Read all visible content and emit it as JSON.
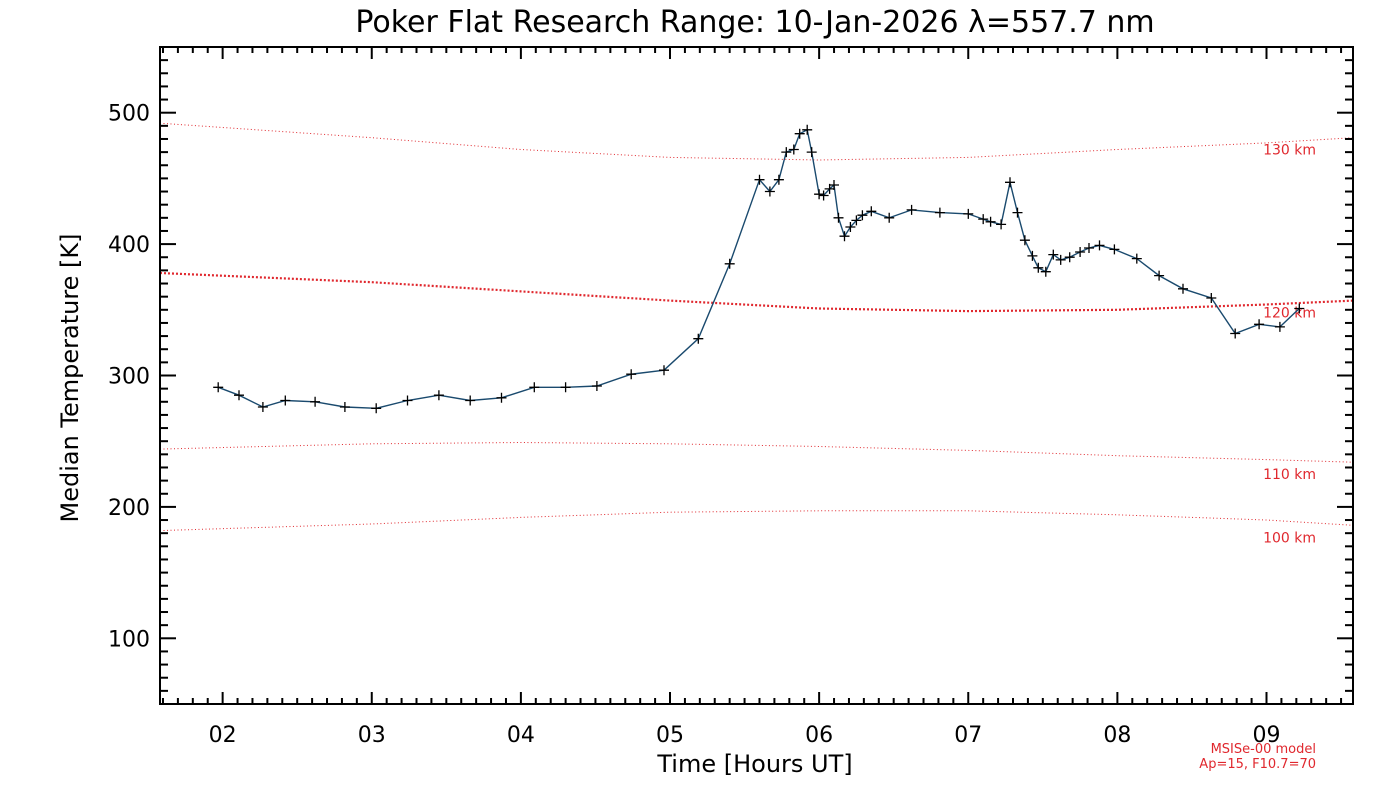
{
  "chart_data": {
    "type": "line",
    "title": "Poker Flat Research Range: 10-Jan-2026 λ=557.7 nm",
    "xlabel": "Time [Hours UT]",
    "ylabel": "Median Temperature [K]",
    "xlim": [
      1.58,
      9.58
    ],
    "ylim": [
      50,
      550
    ],
    "x_ticks": [
      {
        "value": 2,
        "label": "02"
      },
      {
        "value": 3,
        "label": "03"
      },
      {
        "value": 4,
        "label": "04"
      },
      {
        "value": 5,
        "label": "05"
      },
      {
        "value": 6,
        "label": "06"
      },
      {
        "value": 7,
        "label": "07"
      },
      {
        "value": 8,
        "label": "08"
      },
      {
        "value": 9,
        "label": "09"
      }
    ],
    "y_ticks": [
      {
        "value": 100,
        "label": "100"
      },
      {
        "value": 200,
        "label": "200"
      },
      {
        "value": 300,
        "label": "300"
      },
      {
        "value": 400,
        "label": "400"
      },
      {
        "value": 500,
        "label": "500"
      }
    ],
    "series": [
      {
        "name": "Median Temperature",
        "color": "#1a4a6e",
        "marker_color": "#000000",
        "points": [
          [
            1.97,
            291
          ],
          [
            2.11,
            285
          ],
          [
            2.27,
            276
          ],
          [
            2.42,
            281
          ],
          [
            2.62,
            280
          ],
          [
            2.82,
            276
          ],
          [
            3.03,
            275
          ],
          [
            3.24,
            281
          ],
          [
            3.45,
            285
          ],
          [
            3.66,
            281
          ],
          [
            3.87,
            283
          ],
          [
            4.09,
            291
          ],
          [
            4.3,
            291
          ],
          [
            4.51,
            292
          ],
          [
            4.74,
            301
          ],
          [
            4.96,
            304
          ],
          [
            5.19,
            328
          ],
          [
            5.4,
            385
          ],
          [
            5.6,
            449
          ],
          [
            5.67,
            440
          ],
          [
            5.73,
            449
          ],
          [
            5.78,
            470
          ],
          [
            5.83,
            472
          ],
          [
            5.87,
            484
          ],
          [
            5.92,
            487
          ],
          [
            5.95,
            470
          ],
          [
            6.0,
            438
          ],
          [
            6.03,
            437
          ],
          [
            6.07,
            442
          ],
          [
            6.1,
            445
          ],
          [
            6.13,
            420
          ],
          [
            6.17,
            406
          ],
          [
            6.21,
            413
          ],
          [
            6.25,
            418
          ],
          [
            6.29,
            422
          ],
          [
            6.35,
            425
          ],
          [
            6.47,
            420
          ],
          [
            6.62,
            426
          ],
          [
            6.81,
            424
          ],
          [
            7.0,
            423
          ],
          [
            7.1,
            419
          ],
          [
            7.15,
            417
          ],
          [
            7.22,
            415
          ],
          [
            7.28,
            447
          ],
          [
            7.33,
            424
          ],
          [
            7.38,
            403
          ],
          [
            7.43,
            391
          ],
          [
            7.47,
            382
          ],
          [
            7.52,
            379
          ],
          [
            7.57,
            392
          ],
          [
            7.62,
            388
          ],
          [
            7.68,
            390
          ],
          [
            7.75,
            394
          ],
          [
            7.81,
            397
          ],
          [
            7.88,
            399
          ],
          [
            7.98,
            396
          ],
          [
            8.13,
            389
          ],
          [
            8.28,
            376
          ],
          [
            8.44,
            366
          ],
          [
            8.63,
            359
          ],
          [
            8.79,
            332
          ],
          [
            8.95,
            339
          ],
          [
            9.09,
            337
          ],
          [
            9.22,
            351
          ]
        ]
      }
    ],
    "model_curves": [
      {
        "label": "130 km",
        "style": "dotted-thin",
        "points": [
          [
            1.58,
            492
          ],
          [
            3.0,
            481
          ],
          [
            4.0,
            472
          ],
          [
            5.0,
            466
          ],
          [
            6.0,
            464
          ],
          [
            7.0,
            466
          ],
          [
            8.0,
            472
          ],
          [
            9.0,
            477
          ],
          [
            9.58,
            481
          ]
        ]
      },
      {
        "label": "120 km",
        "style": "dotted-thick",
        "points": [
          [
            1.58,
            378
          ],
          [
            3.0,
            371
          ],
          [
            4.0,
            364
          ],
          [
            5.0,
            357
          ],
          [
            6.0,
            351
          ],
          [
            7.0,
            349
          ],
          [
            8.0,
            350
          ],
          [
            9.0,
            354
          ],
          [
            9.58,
            357
          ]
        ]
      },
      {
        "label": "110 km",
        "style": "dotted-thin",
        "points": [
          [
            1.58,
            244
          ],
          [
            3.0,
            248
          ],
          [
            4.0,
            249
          ],
          [
            5.0,
            248
          ],
          [
            6.0,
            246
          ],
          [
            7.0,
            243
          ],
          [
            8.0,
            239
          ],
          [
            9.0,
            236
          ],
          [
            9.58,
            234
          ]
        ]
      },
      {
        "label": "100 km",
        "style": "dotted-thin",
        "points": [
          [
            1.58,
            182
          ],
          [
            3.0,
            187
          ],
          [
            4.0,
            192
          ],
          [
            5.0,
            196
          ],
          [
            6.0,
            197
          ],
          [
            7.0,
            197
          ],
          [
            8.0,
            194
          ],
          [
            9.0,
            190
          ],
          [
            9.58,
            186
          ]
        ]
      }
    ],
    "model_note_line1": "MSISe-00 model",
    "model_note_line2": "Ap=15, F10.7=70",
    "grid": false,
    "legend": "none"
  }
}
